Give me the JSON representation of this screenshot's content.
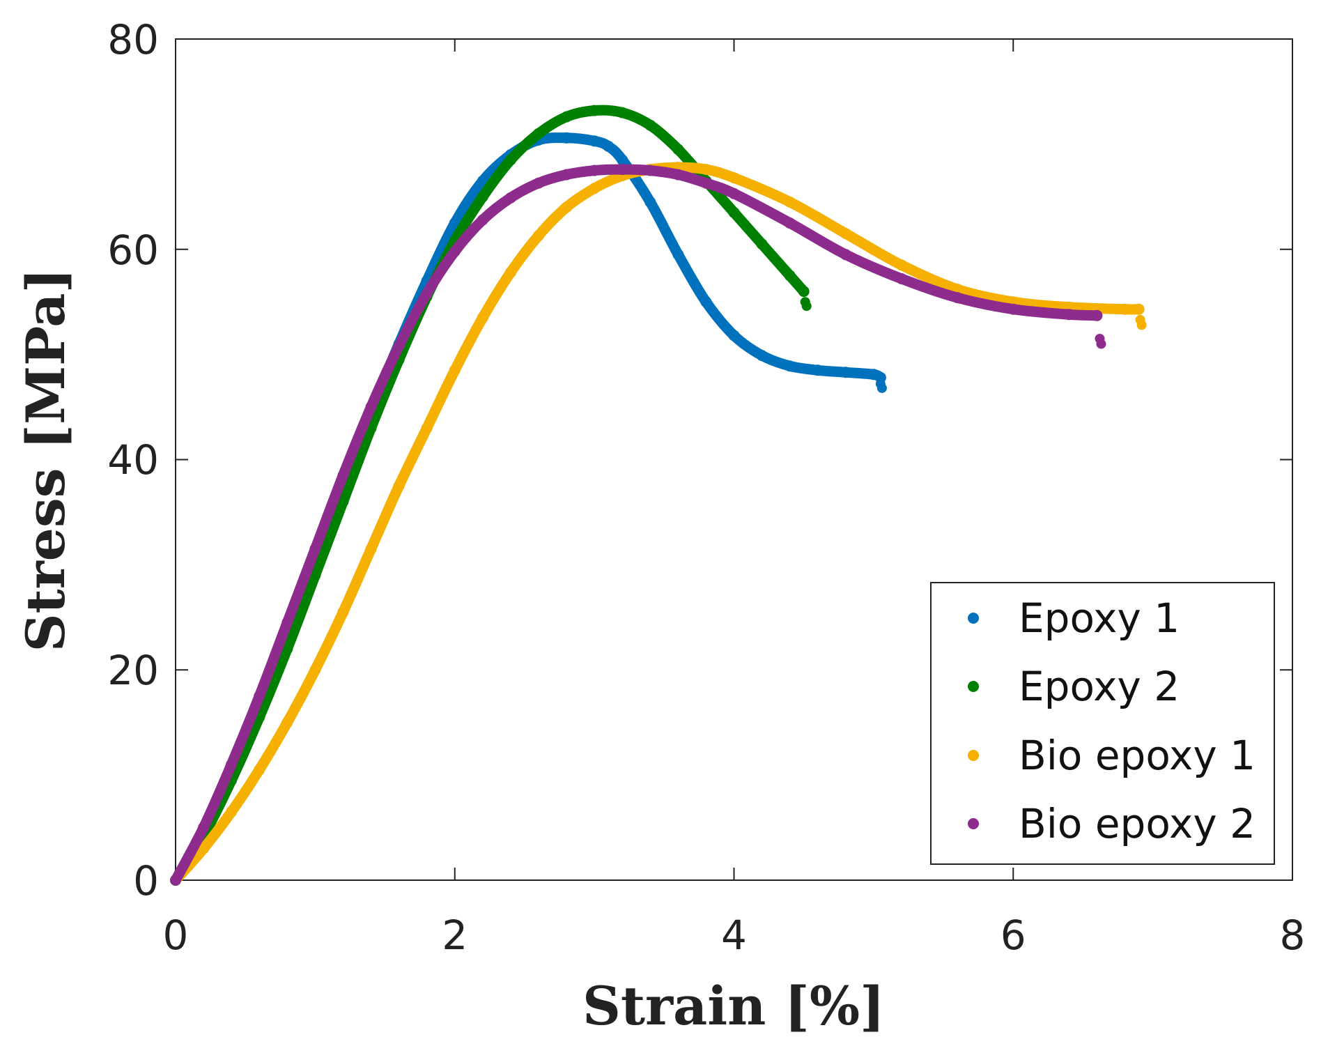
{
  "chart_data": {
    "type": "scatter",
    "title": "",
    "xlabel": "Strain [%]",
    "ylabel": "Stress [MPa]",
    "xlim": [
      0,
      8
    ],
    "ylim": [
      0,
      80
    ],
    "xticks": [
      "0",
      "2",
      "4",
      "6",
      "8"
    ],
    "yticks": [
      "0",
      "20",
      "40",
      "60",
      "80"
    ],
    "legend_position": "bottom-right",
    "grid": false,
    "series": [
      {
        "name": "Epoxy 1",
        "color": "#0072BD",
        "x": [
          0,
          0.2,
          0.4,
          0.6,
          0.8,
          1.0,
          1.2,
          1.4,
          1.6,
          1.8,
          2.0,
          2.2,
          2.4,
          2.6,
          2.8,
          3.0,
          3.1,
          3.2,
          3.4,
          3.6,
          3.8,
          4.0,
          4.2,
          4.4,
          4.6,
          4.8,
          5.0,
          5.05
        ],
        "y": [
          0,
          4.5,
          10.5,
          16.8,
          23.5,
          30.5,
          37.5,
          44.5,
          51.0,
          57.0,
          62.5,
          66.5,
          69.0,
          70.4,
          70.6,
          70.3,
          69.8,
          68.5,
          64.5,
          59.5,
          55.0,
          51.8,
          49.9,
          48.9,
          48.5,
          48.3,
          48.1,
          47.8
        ],
        "tail_x": [
          5.05,
          5.06
        ],
        "tail_y": [
          47.2,
          46.8
        ]
      },
      {
        "name": "Epoxy 2",
        "color": "#008000",
        "x": [
          0,
          0.2,
          0.4,
          0.6,
          0.8,
          1.0,
          1.2,
          1.4,
          1.6,
          1.8,
          2.0,
          2.2,
          2.4,
          2.6,
          2.8,
          3.0,
          3.2,
          3.4,
          3.6,
          3.8,
          4.0,
          4.2,
          4.4,
          4.5
        ],
        "y": [
          0,
          4.2,
          9.5,
          15.5,
          22.0,
          29.0,
          36.0,
          43.0,
          49.5,
          55.5,
          60.8,
          65.0,
          68.5,
          71.0,
          72.6,
          73.2,
          73.0,
          71.8,
          69.5,
          66.5,
          63.5,
          60.5,
          57.5,
          56.0
        ],
        "tail_x": [
          4.51,
          4.52
        ],
        "tail_y": [
          55.0,
          54.6
        ]
      },
      {
        "name": "Bio epoxy 1",
        "color": "#F5B000",
        "x": [
          0,
          0.2,
          0.4,
          0.6,
          0.8,
          1.0,
          1.2,
          1.4,
          1.6,
          1.8,
          2.0,
          2.2,
          2.4,
          2.6,
          2.8,
          3.0,
          3.2,
          3.4,
          3.6,
          3.8,
          4.0,
          4.4,
          4.8,
          5.2,
          5.6,
          6.0,
          6.4,
          6.8,
          6.9
        ],
        "y": [
          0,
          3.0,
          6.5,
          10.5,
          15.0,
          20.0,
          25.5,
          31.5,
          37.5,
          43.0,
          48.5,
          53.5,
          57.8,
          61.3,
          64.0,
          65.8,
          67.0,
          67.6,
          67.8,
          67.6,
          66.8,
          64.5,
          61.5,
          58.5,
          56.2,
          55.0,
          54.5,
          54.3,
          54.3
        ],
        "tail_x": [
          6.91,
          6.92
        ],
        "tail_y": [
          53.3,
          52.8
        ]
      },
      {
        "name": "Bio epoxy 2",
        "color": "#8E2C8E",
        "x": [
          0,
          0.2,
          0.4,
          0.6,
          0.8,
          1.0,
          1.2,
          1.4,
          1.6,
          1.8,
          2.0,
          2.2,
          2.4,
          2.6,
          2.8,
          3.0,
          3.2,
          3.4,
          3.6,
          3.8,
          4.0,
          4.4,
          4.8,
          5.2,
          5.6,
          6.0,
          6.4,
          6.6
        ],
        "y": [
          0,
          5.0,
          11.0,
          17.5,
          24.5,
          31.5,
          38.5,
          45.0,
          50.8,
          55.8,
          59.8,
          62.8,
          64.9,
          66.3,
          67.1,
          67.5,
          67.6,
          67.5,
          67.1,
          66.3,
          65.3,
          62.5,
          59.5,
          57.2,
          55.4,
          54.3,
          53.8,
          53.7
        ],
        "tail_x": [
          6.62,
          6.63
        ],
        "tail_y": [
          51.5,
          51.0
        ]
      }
    ]
  }
}
